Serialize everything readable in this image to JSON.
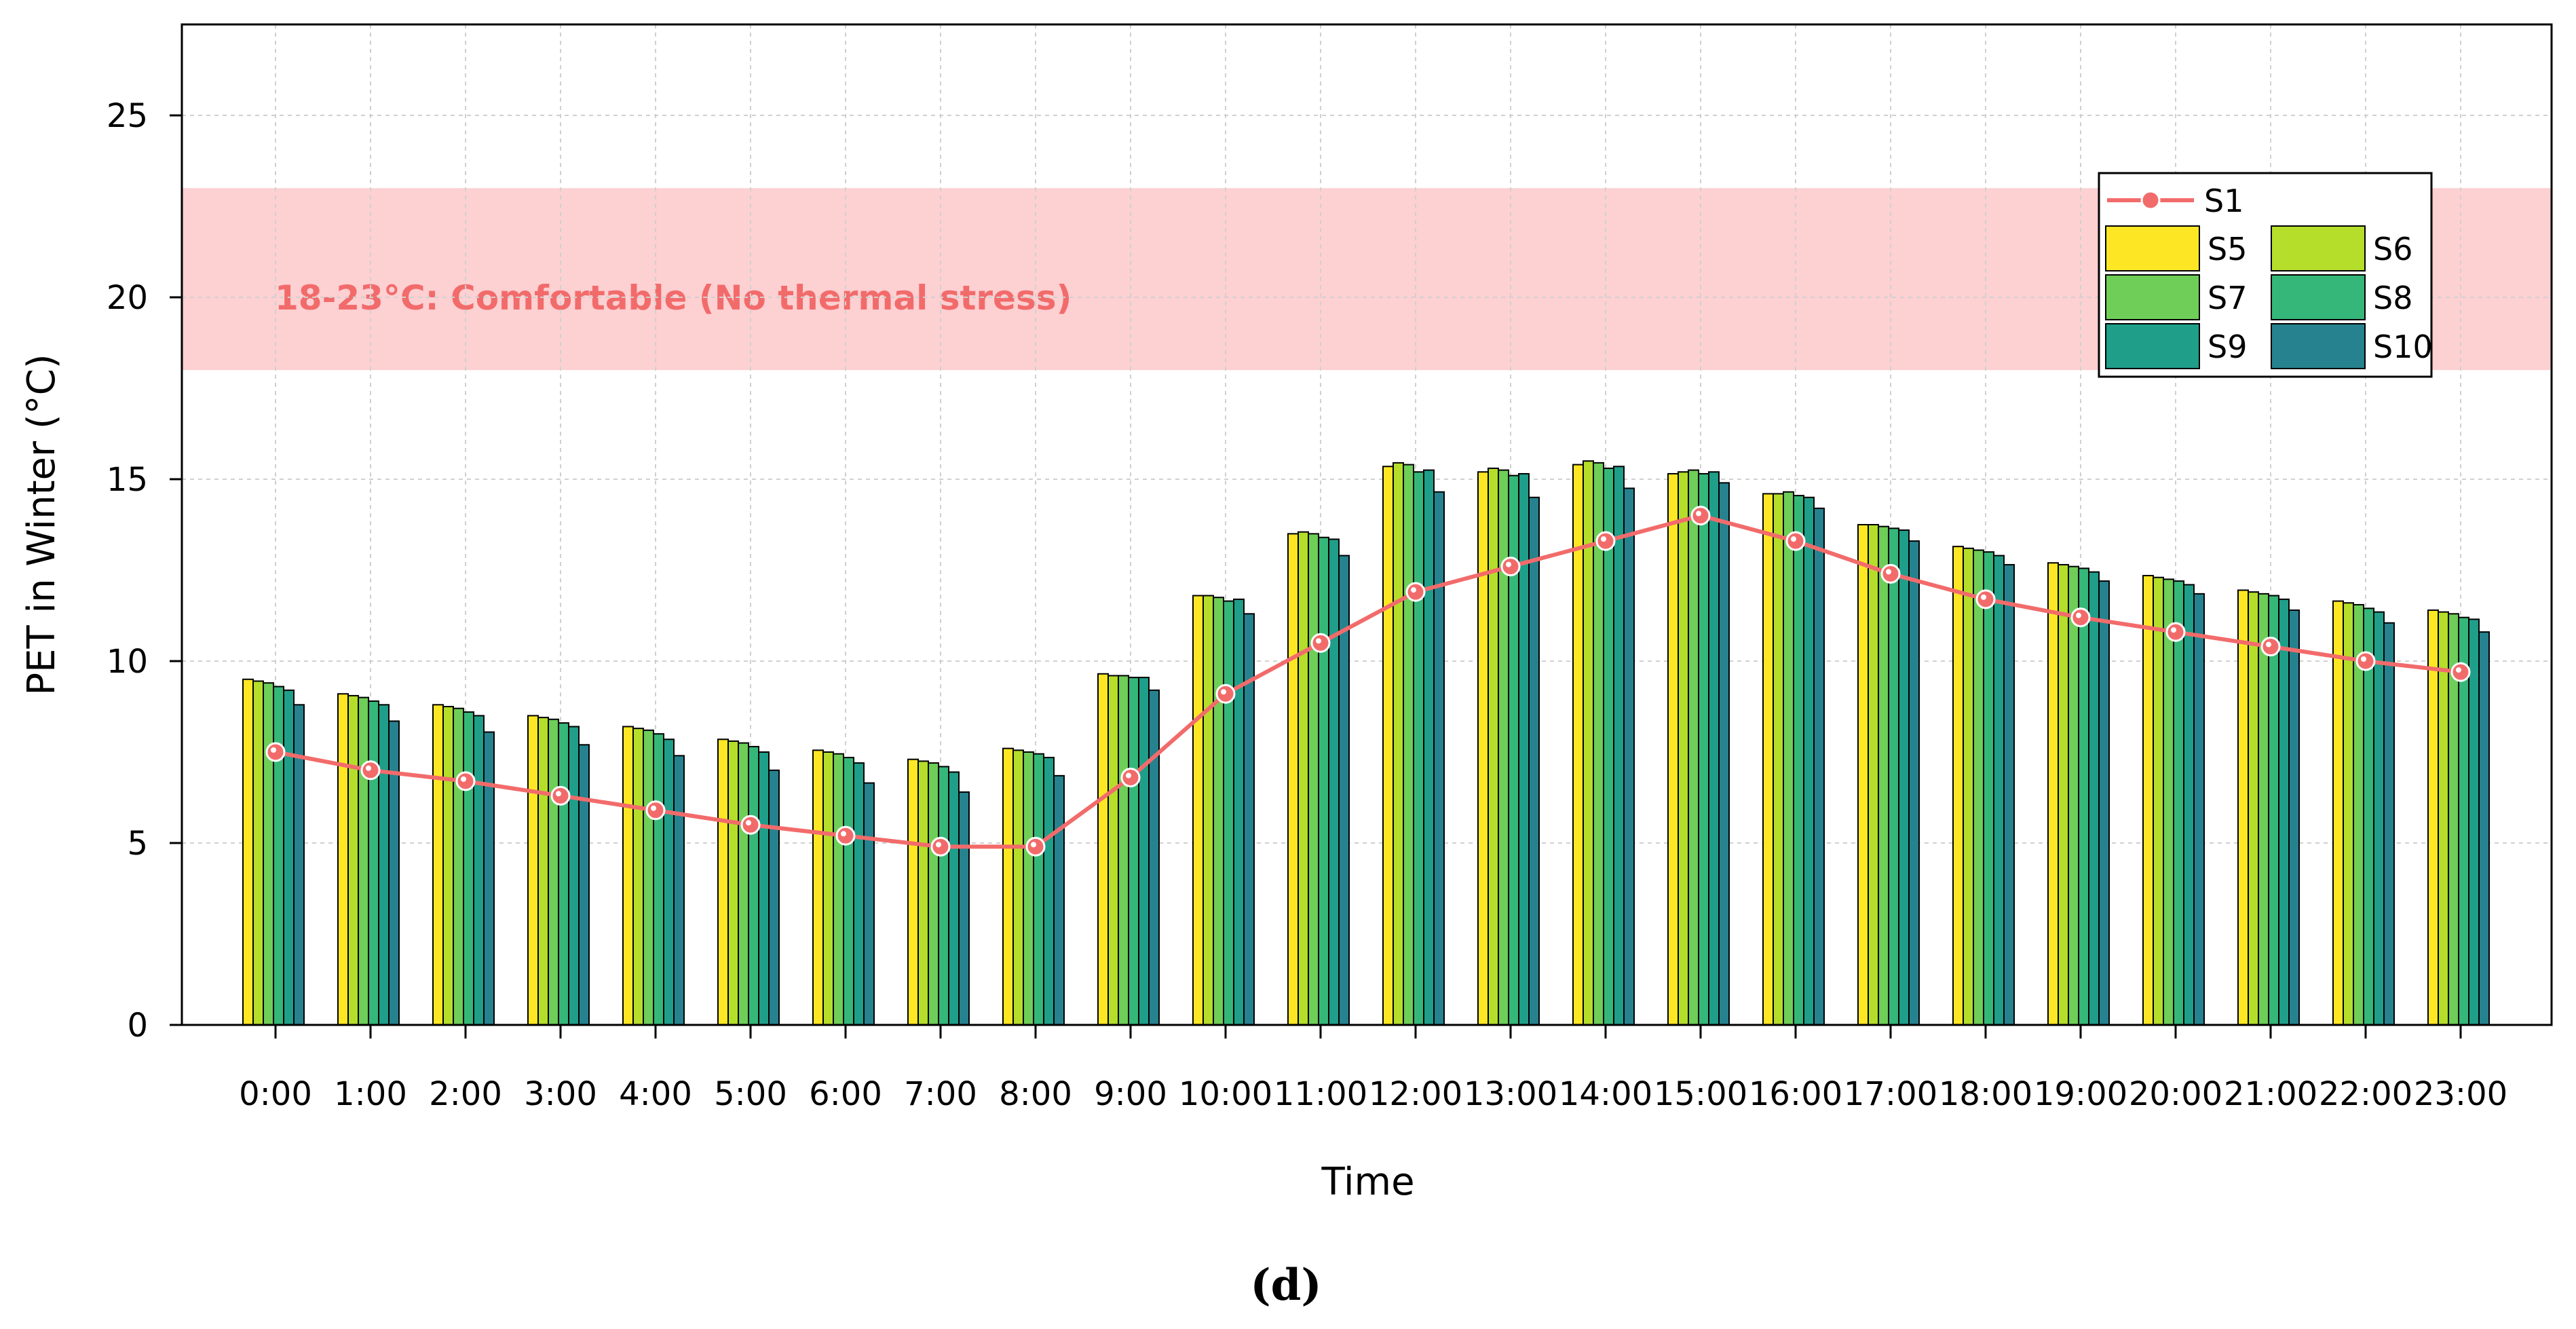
{
  "chart_data": {
    "type": "bar",
    "title": "",
    "xlabel": "Time",
    "ylabel": "PET in Winter  (°C)",
    "caption": "(d)",
    "ylim": [
      0,
      27.5
    ],
    "yticks": [
      0,
      5,
      10,
      15,
      20,
      25
    ],
    "grid": true,
    "legend_position": "top-right",
    "categories": [
      "0:00",
      "1:00",
      "2:00",
      "3:00",
      "4:00",
      "5:00",
      "6:00",
      "7:00",
      "8:00",
      "9:00",
      "10:00",
      "11:00",
      "12:00",
      "13:00",
      "14:00",
      "15:00",
      "16:00",
      "17:00",
      "18:00",
      "19:00",
      "20:00",
      "21:00",
      "22:00",
      "23:00"
    ],
    "comfort_band": {
      "range": [
        18,
        23
      ],
      "label": "18-23°C: Comfortable (No thermal stress)",
      "color": "#fdd0d2",
      "label_color": "#f26b6b"
    },
    "line_series": {
      "name": "S1",
      "color": "#f26b6b",
      "values": [
        7.5,
        7.0,
        6.7,
        6.3,
        5.9,
        5.5,
        5.2,
        4.9,
        4.9,
        6.8,
        9.1,
        10.5,
        11.9,
        12.6,
        13.3,
        14.0,
        13.3,
        12.4,
        11.7,
        11.2,
        10.8,
        10.4,
        10.0,
        9.7
      ]
    },
    "series": [
      {
        "name": "S5",
        "color": "#fde725",
        "values": [
          9.5,
          9.1,
          8.8,
          8.5,
          8.2,
          7.85,
          7.55,
          7.3,
          7.6,
          9.65,
          11.8,
          13.5,
          15.35,
          15.2,
          15.4,
          15.15,
          14.6,
          13.75,
          13.15,
          12.7,
          12.35,
          11.95,
          11.65,
          11.4
        ]
      },
      {
        "name": "S6",
        "color": "#b5de2b",
        "values": [
          9.45,
          9.05,
          8.75,
          8.45,
          8.15,
          7.8,
          7.5,
          7.25,
          7.55,
          9.6,
          11.8,
          13.55,
          15.45,
          15.3,
          15.5,
          15.2,
          14.6,
          13.75,
          13.1,
          12.65,
          12.3,
          11.9,
          11.6,
          11.35
        ]
      },
      {
        "name": "S7",
        "color": "#6ece58",
        "values": [
          9.4,
          9.0,
          8.7,
          8.4,
          8.1,
          7.75,
          7.45,
          7.2,
          7.5,
          9.6,
          11.75,
          13.5,
          15.4,
          15.25,
          15.45,
          15.25,
          14.65,
          13.7,
          13.05,
          12.6,
          12.25,
          11.85,
          11.55,
          11.3
        ]
      },
      {
        "name": "S8",
        "color": "#35b779",
        "values": [
          9.3,
          8.9,
          8.6,
          8.3,
          8.0,
          7.65,
          7.35,
          7.1,
          7.45,
          9.55,
          11.65,
          13.4,
          15.2,
          15.1,
          15.3,
          15.15,
          14.55,
          13.65,
          13.0,
          12.55,
          12.2,
          11.8,
          11.45,
          11.2
        ]
      },
      {
        "name": "S9",
        "color": "#1f9e89",
        "values": [
          9.2,
          8.8,
          8.5,
          8.2,
          7.85,
          7.5,
          7.2,
          6.95,
          7.35,
          9.55,
          11.7,
          13.35,
          15.25,
          15.15,
          15.35,
          15.2,
          14.5,
          13.6,
          12.9,
          12.45,
          12.1,
          11.7,
          11.35,
          11.15
        ]
      },
      {
        "name": "S10",
        "color": "#26828e",
        "values": [
          8.8,
          8.35,
          8.05,
          7.7,
          7.4,
          7.0,
          6.65,
          6.4,
          6.85,
          9.2,
          11.3,
          12.9,
          14.65,
          14.5,
          14.75,
          14.9,
          14.2,
          13.3,
          12.65,
          12.2,
          11.85,
          11.4,
          11.05,
          10.8
        ]
      }
    ]
  }
}
